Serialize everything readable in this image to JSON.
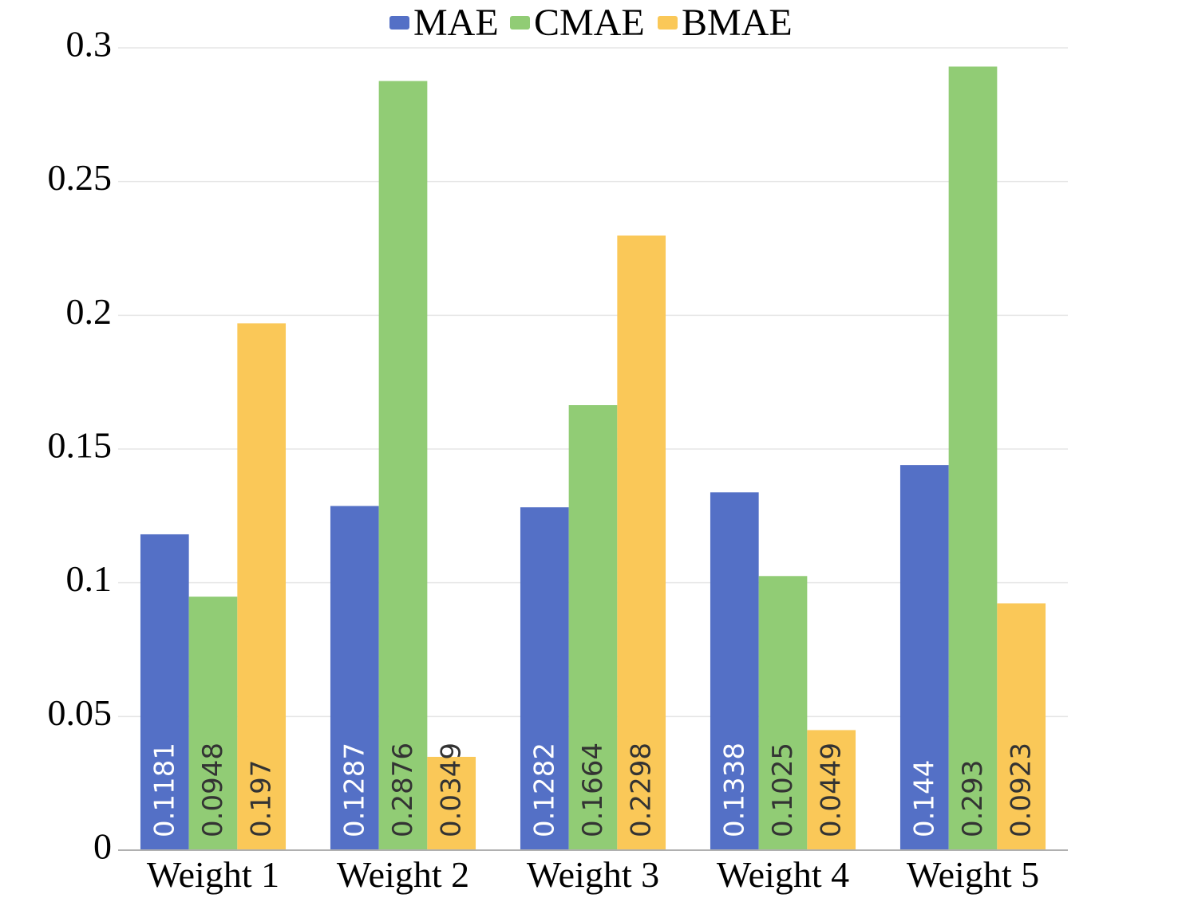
{
  "chart_data": {
    "type": "bar",
    "title": "",
    "xlabel": "",
    "ylabel": "",
    "ylim": [
      0,
      0.3
    ],
    "yticks": [
      "0",
      "0.05",
      "0.1",
      "0.15",
      "0.2",
      "0.25",
      "0.3"
    ],
    "ytick_values": [
      0,
      0.05,
      0.1,
      0.15,
      0.2,
      0.25,
      0.3
    ],
    "grid": true,
    "legend_position": "top-center",
    "categories": [
      "Weight 1",
      "Weight 2",
      "Weight 3",
      "Weight 4",
      "Weight 5"
    ],
    "series": [
      {
        "name": "MAE",
        "color": "#5470c6",
        "label_color": "#ffffff",
        "values": [
          0.1181,
          0.1287,
          0.1282,
          0.1338,
          0.144
        ],
        "labels": [
          "0.1181",
          "0.1287",
          "0.1282",
          "0.1338",
          "0.144"
        ]
      },
      {
        "name": "CMAE",
        "color": "#91cc75",
        "label_color": "#333333",
        "values": [
          0.0948,
          0.2876,
          0.1664,
          0.1025,
          0.293
        ],
        "labels": [
          "0.0948",
          "0.2876",
          "0.1664",
          "0.1025",
          "0.293"
        ]
      },
      {
        "name": "BMAE",
        "color": "#fac858",
        "label_color": "#333333",
        "values": [
          0.197,
          0.0349,
          0.2298,
          0.0449,
          0.0923
        ],
        "labels": [
          "0.197",
          "0.0349",
          "0.2298",
          "0.0449",
          "0.0923"
        ]
      }
    ]
  }
}
